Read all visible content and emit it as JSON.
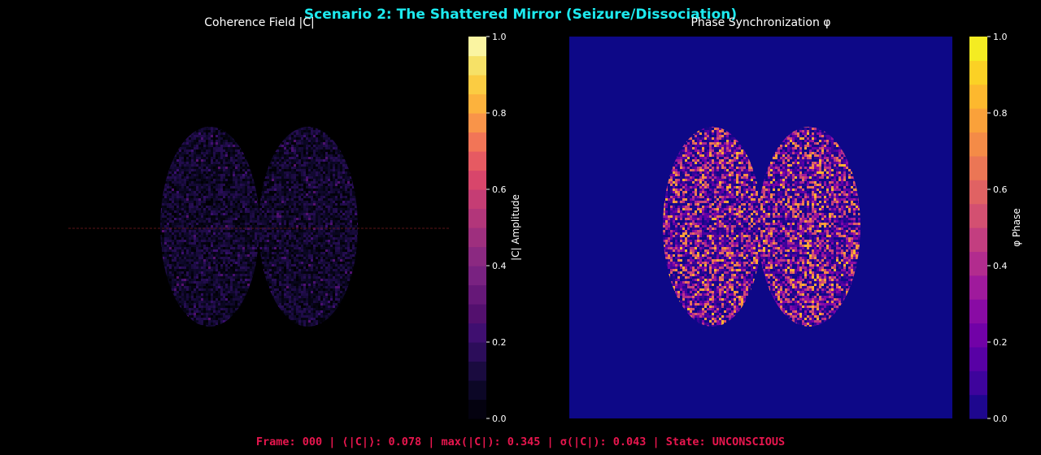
{
  "figure": {
    "title": "Scenario 2: The Shattered Mirror (Seizure/Dissociation)",
    "footer": "Frame: 000 | ⟨|C|⟩: 0.078 | max(|C|): 0.345 | σ(|C|): 0.043 | State: UNCONSCIOUS"
  },
  "colors": {
    "background": "#000000",
    "title": "#1de9ee",
    "footer": "#e8164e",
    "text": "#ffffff",
    "phase_background": "#0d0887"
  },
  "chart_data": [
    {
      "type": "heatmap",
      "title": "Coherence Field |C|",
      "colormap": "inferno (discretized)",
      "colorbar": {
        "label": "|C| Amplitude",
        "ticks": [
          "0.0",
          "0.2",
          "0.4",
          "0.6",
          "0.8",
          "1.0"
        ],
        "range": [
          0,
          1
        ]
      },
      "field": "two overlapping elliptical hemispheres, low amplitude noise",
      "values_summary": {
        "mean": 0.078,
        "max": 0.345,
        "std": 0.043
      },
      "annotation": "dashed horizontal line at midline"
    },
    {
      "type": "heatmap",
      "title": "Phase Synchronization φ",
      "colormap": "plasma (discretized)",
      "colorbar": {
        "label": "φ Phase",
        "ticks": [
          "0.0",
          "0.2",
          "0.4",
          "0.6",
          "0.8",
          "1.0"
        ],
        "range": [
          0,
          1
        ]
      },
      "field": "two overlapping elliptical hemispheres, random phase noise on background phase 0"
    }
  ]
}
